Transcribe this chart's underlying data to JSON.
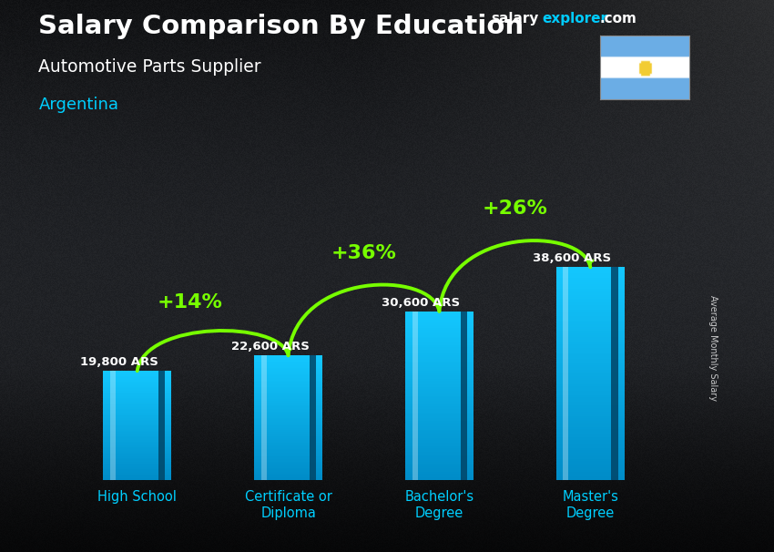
{
  "title": "Salary Comparison By Education",
  "subtitle": "Automotive Parts Supplier",
  "country": "Argentina",
  "ylabel": "Average Monthly Salary",
  "categories": [
    "High School",
    "Certificate or\nDiploma",
    "Bachelor's\nDegree",
    "Master's\nDegree"
  ],
  "values": [
    19800,
    22600,
    30600,
    38600
  ],
  "labels": [
    "19,800 ARS",
    "22,600 ARS",
    "30,600 ARS",
    "38,600 ARS"
  ],
  "pct_changes": [
    "+14%",
    "+36%",
    "+26%"
  ],
  "bar_color_main": "#00b4d8",
  "bar_color_dark": "#0077aa",
  "bar_color_light": "#00d4ff",
  "tick_label_color": "#00cfff",
  "label_color": "#ffffff",
  "pct_color": "#77ff00",
  "arrow_color": "#77ff00",
  "bg_color": "#111118",
  "ylim": [
    0,
    52000
  ],
  "bar_width": 0.45
}
